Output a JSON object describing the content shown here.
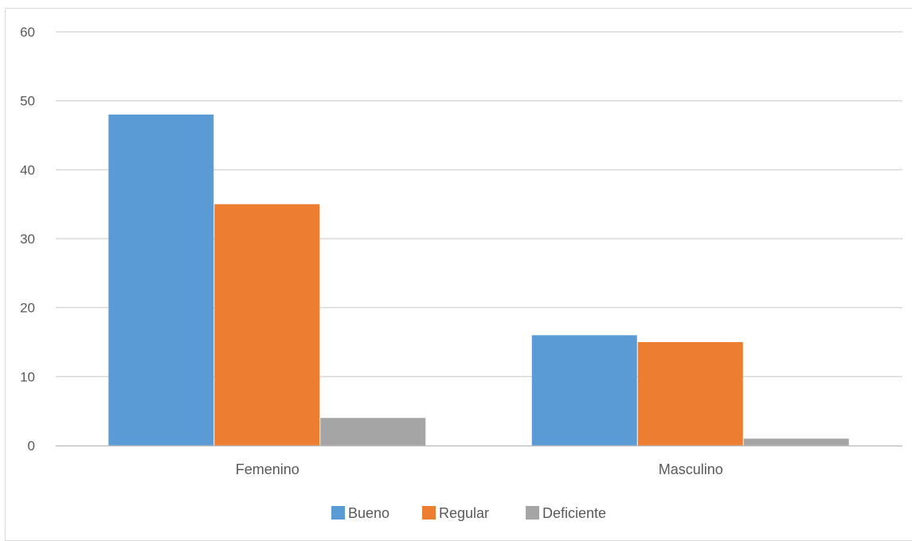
{
  "chart_data": {
    "type": "bar",
    "categories": [
      "Femenino",
      "Masculino"
    ],
    "series": [
      {
        "name": "Bueno",
        "values": [
          48,
          16
        ],
        "color": "#5b9bd5"
      },
      {
        "name": "Regular",
        "values": [
          35,
          15
        ],
        "color": "#ed7d31"
      },
      {
        "name": "Deficiente",
        "values": [
          4,
          1
        ],
        "color": "#a5a5a5"
      }
    ],
    "ylim": [
      0,
      60
    ],
    "yticks": [
      "0",
      "10",
      "20",
      "30",
      "40",
      "50",
      "60"
    ],
    "grid": true,
    "legend_position": "bottom",
    "colors": {
      "gridline": "#d9d9d9",
      "axis": "#bfbfbf",
      "text": "#595959"
    }
  }
}
